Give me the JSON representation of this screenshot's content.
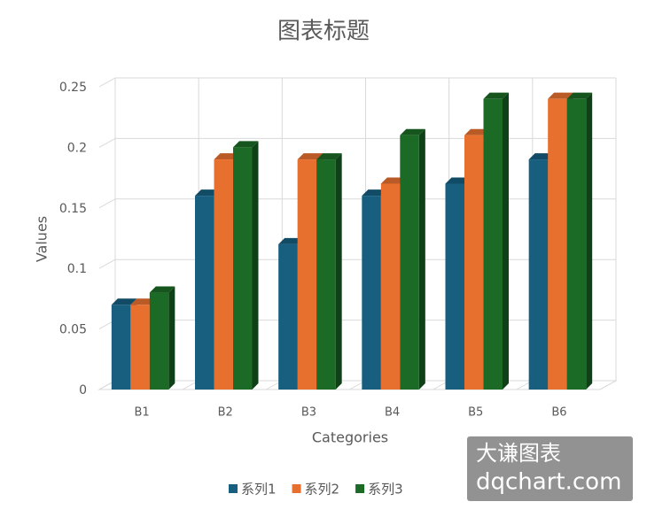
{
  "chart_data": {
    "type": "bar3d",
    "title": "图表标题",
    "x_label": "Categories",
    "y_label": "Values",
    "categories": [
      "B1",
      "B2",
      "B3",
      "B4",
      "B5",
      "B6"
    ],
    "series": [
      {
        "name": "系列1",
        "color": "#175e7f",
        "values": [
          0.07,
          0.16,
          0.12,
          0.16,
          0.17,
          0.19
        ]
      },
      {
        "name": "系列2",
        "color": "#e8702f",
        "values": [
          0.07,
          0.19,
          0.19,
          0.17,
          0.21,
          0.24
        ]
      },
      {
        "name": "系列3",
        "color": "#1b6b26",
        "values": [
          0.08,
          0.2,
          0.19,
          0.21,
          0.24,
          0.24
        ]
      }
    ],
    "ylim": [
      0,
      0.25
    ],
    "yticks": [
      0,
      0.05,
      0.1,
      0.15,
      0.2,
      0.25
    ],
    "grid": true,
    "legend": "bottom"
  },
  "watermark": {
    "line1": "大谦图表",
    "line2": "dqchart.com"
  }
}
